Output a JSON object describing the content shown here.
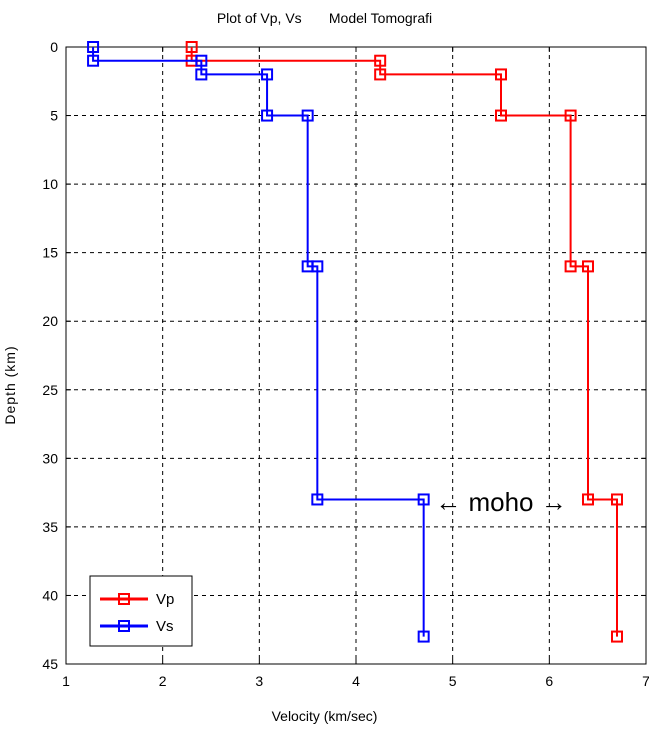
{
  "chart_data": {
    "type": "line",
    "title": "Plot of Vp, Vs       Model Tomografi",
    "xlabel": "Velocity (km/sec)",
    "ylabel": "Depth (km)",
    "xlim": [
      1,
      7
    ],
    "ylim": [
      0,
      45
    ],
    "y_reversed": true,
    "grid": true,
    "grid_style": "dashed",
    "xticks": [
      "1",
      "2",
      "3",
      "4",
      "5",
      "6",
      "7"
    ],
    "yticks": [
      "0",
      "5",
      "10",
      "15",
      "20",
      "25",
      "30",
      "35",
      "40",
      "45"
    ],
    "legend_placement": "bottom-left",
    "series": [
      {
        "name": "Vp",
        "color": "#ff0000",
        "marker": "square",
        "points": [
          [
            2.3,
            0
          ],
          [
            2.3,
            1
          ],
          [
            4.25,
            1
          ],
          [
            4.25,
            2
          ],
          [
            5.5,
            2
          ],
          [
            5.5,
            5
          ],
          [
            6.22,
            5
          ],
          [
            6.22,
            16
          ],
          [
            6.4,
            16
          ],
          [
            6.4,
            33
          ],
          [
            6.7,
            33
          ],
          [
            6.7,
            43
          ]
        ],
        "marker_points": [
          [
            2.3,
            0
          ],
          [
            2.3,
            1
          ],
          [
            4.25,
            1
          ],
          [
            4.25,
            2
          ],
          [
            5.5,
            2
          ],
          [
            5.5,
            5
          ],
          [
            6.22,
            5
          ],
          [
            6.22,
            16
          ],
          [
            6.4,
            16
          ],
          [
            6.4,
            33
          ],
          [
            6.7,
            33
          ],
          [
            6.7,
            43
          ]
        ]
      },
      {
        "name": "Vs",
        "color": "#0000ff",
        "marker": "square",
        "points": [
          [
            1.28,
            0
          ],
          [
            1.28,
            1
          ],
          [
            2.4,
            1
          ],
          [
            2.4,
            2
          ],
          [
            3.08,
            2
          ],
          [
            3.08,
            5
          ],
          [
            3.5,
            5
          ],
          [
            3.5,
            16
          ],
          [
            3.6,
            16
          ],
          [
            3.6,
            33
          ],
          [
            4.7,
            33
          ],
          [
            4.7,
            43
          ]
        ],
        "marker_points": [
          [
            1.28,
            0
          ],
          [
            1.28,
            1
          ],
          [
            2.4,
            1
          ],
          [
            2.4,
            2
          ],
          [
            3.08,
            2
          ],
          [
            3.08,
            5
          ],
          [
            3.5,
            5
          ],
          [
            3.5,
            16
          ],
          [
            3.6,
            16
          ],
          [
            3.6,
            33
          ],
          [
            4.7,
            33
          ],
          [
            4.7,
            43
          ]
        ]
      }
    ],
    "annotations": [
      {
        "text": "← moho →",
        "x": 5.5,
        "y": 33.2
      }
    ]
  }
}
